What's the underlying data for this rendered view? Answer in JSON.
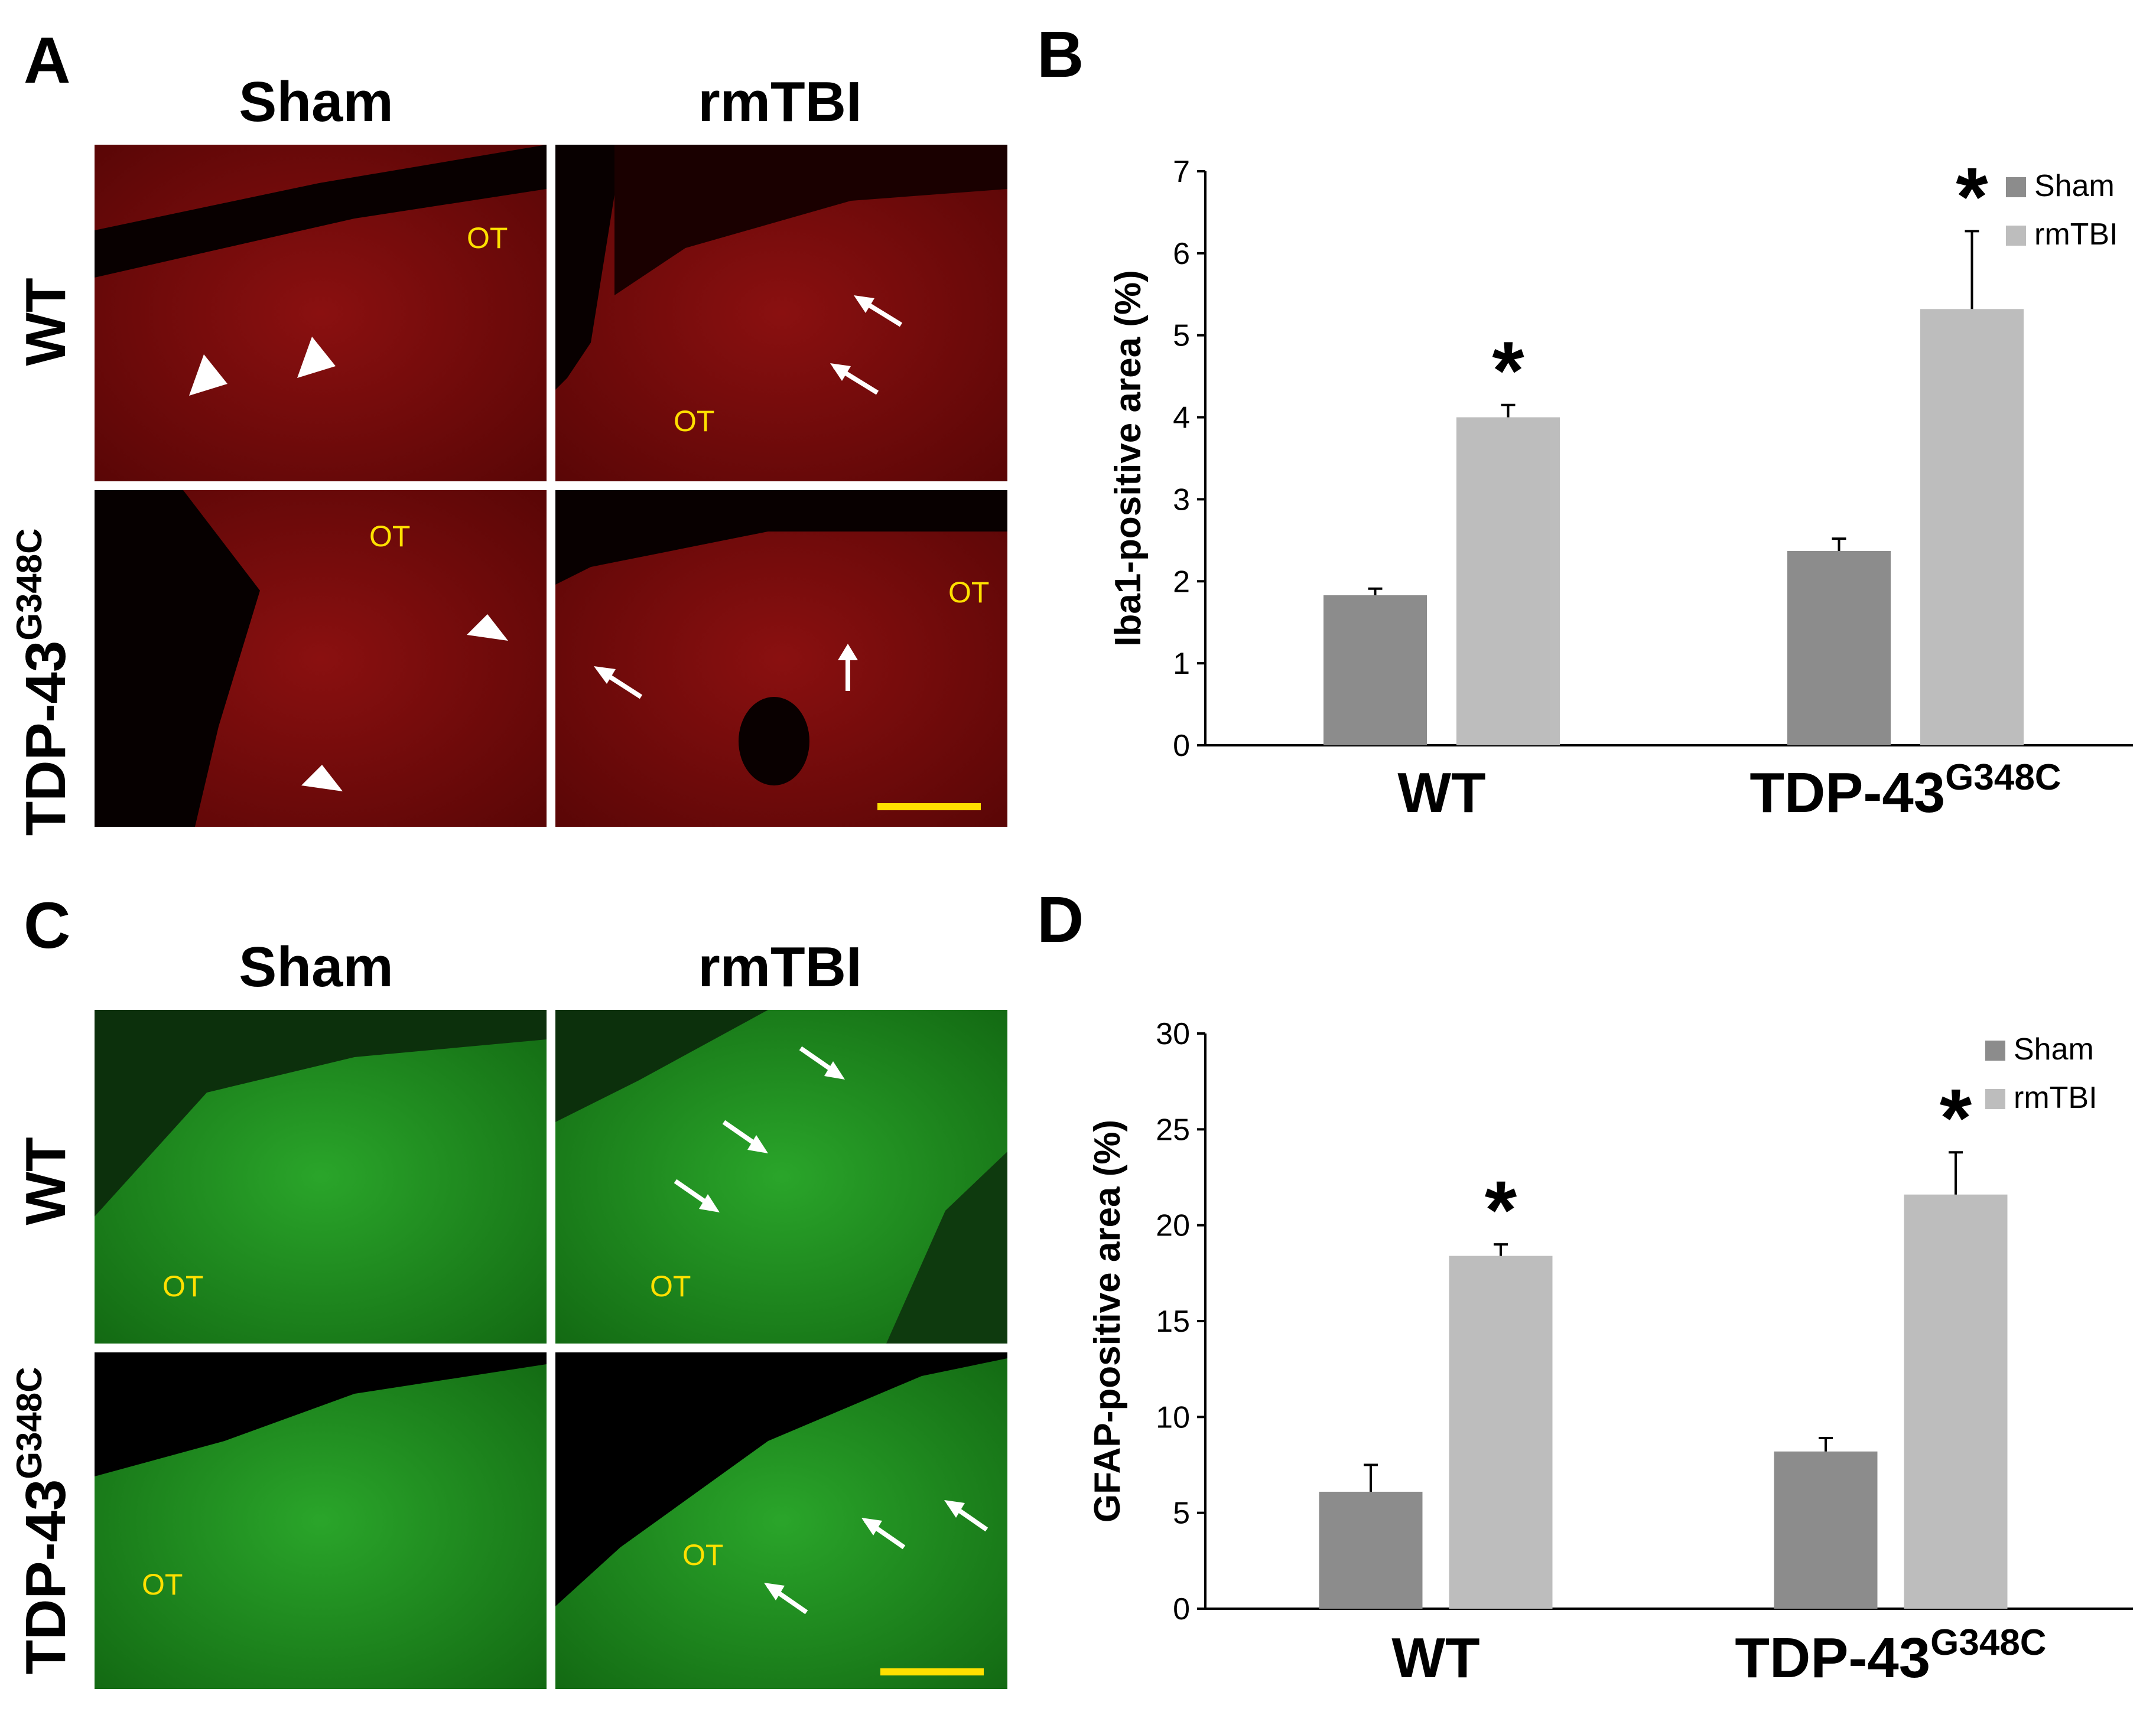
{
  "panels": {
    "a": {
      "letter": "A",
      "col_sham": "Sham",
      "col_rmtbi": "rmTBI",
      "row_wt": "WT",
      "row_tdp_base": "TDP-43",
      "row_tdp_sup": "G348C",
      "region_label": "OT",
      "tissue_color": "#7a0a0a",
      "marker_color": "#ffffff",
      "label_color": "#ffe000",
      "scale_bar_color": "#ffe000"
    },
    "c": {
      "letter": "C",
      "col_sham": "Sham",
      "col_rmtbi": "rmTBI",
      "row_wt": "WT",
      "row_tdp_base": "TDP-43",
      "row_tdp_sup": "G348C",
      "region_label": "OT",
      "tissue_color": "#1f8a1f",
      "marker_color": "#ffffff",
      "label_color": "#ffe000",
      "scale_bar_color": "#ffe000"
    }
  },
  "chart_data": [
    {
      "letter": "B",
      "type": "bar",
      "categories": [
        "WT",
        "TDP-43"
      ],
      "category_superscripts": [
        "",
        "G348C"
      ],
      "ylabel": "Iba1-positive area (%)",
      "ylim": [
        0,
        7
      ],
      "yticks": [
        0,
        1,
        2,
        3,
        4,
        5,
        6,
        7
      ],
      "legend_position": "top-right",
      "series": [
        {
          "name": "Sham",
          "color": "#8c8c8c",
          "values": [
            1.83,
            2.37
          ],
          "errors": [
            0.08,
            0.15
          ]
        },
        {
          "name": "rmTBI",
          "color": "#bdbdbd",
          "values": [
            4.0,
            5.32
          ],
          "errors": [
            0.15,
            0.95
          ]
        }
      ],
      "significance": {
        "symbol": "*",
        "series": "rmTBI"
      }
    },
    {
      "letter": "D",
      "type": "bar",
      "categories": [
        "WT",
        "TDP-43"
      ],
      "category_superscripts": [
        "",
        "G348C"
      ],
      "ylabel": "GFAP-positive area (%)",
      "ylim": [
        0,
        30
      ],
      "yticks": [
        0,
        5,
        10,
        15,
        20,
        25,
        30
      ],
      "legend_position": "top-right",
      "series": [
        {
          "name": "Sham",
          "color": "#8c8c8c",
          "values": [
            6.1,
            8.2
          ],
          "errors": [
            1.4,
            0.7
          ]
        },
        {
          "name": "rmTBI",
          "color": "#bdbdbd",
          "values": [
            18.4,
            21.6
          ],
          "errors": [
            0.6,
            2.2
          ]
        }
      ],
      "significance": {
        "symbol": "*",
        "series": "rmTBI"
      }
    }
  ]
}
